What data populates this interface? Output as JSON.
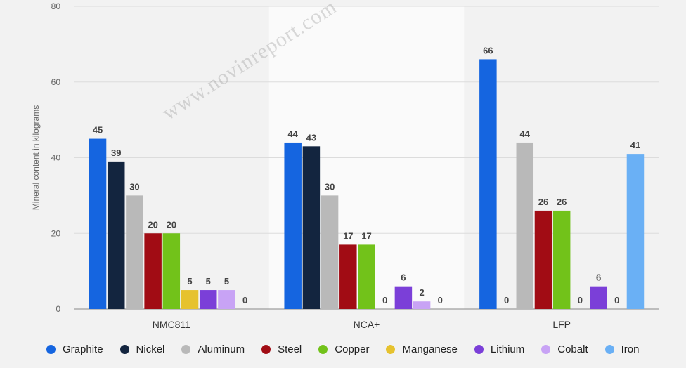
{
  "chart_data": {
    "type": "bar",
    "categories": [
      "NMC811",
      "NCA+",
      "LFP"
    ],
    "series": [
      {
        "name": "Graphite",
        "color": "#1565e0",
        "values": [
          45,
          44,
          66
        ]
      },
      {
        "name": "Nickel",
        "color": "#13253f",
        "values": [
          39,
          43,
          0
        ]
      },
      {
        "name": "Aluminum",
        "color": "#b9b9b9",
        "values": [
          30,
          30,
          44
        ]
      },
      {
        "name": "Steel",
        "color": "#a10c14",
        "values": [
          20,
          17,
          26
        ]
      },
      {
        "name": "Copper",
        "color": "#72c21a",
        "values": [
          20,
          17,
          26
        ]
      },
      {
        "name": "Manganese",
        "color": "#e6c22e",
        "values": [
          5,
          0,
          0
        ]
      },
      {
        "name": "Lithium",
        "color": "#7b3fd8",
        "values": [
          5,
          6,
          6
        ]
      },
      {
        "name": "Cobalt",
        "color": "#c8a3f5",
        "values": [
          5,
          2,
          0
        ]
      },
      {
        "name": "Iron",
        "color": "#6ab0f5",
        "values": [
          0,
          0,
          41
        ]
      }
    ],
    "ylabel": "Mineral content in kilograms",
    "ylim": [
      0,
      80
    ],
    "yticks": [
      0,
      20,
      40,
      60,
      80
    ],
    "grid": true,
    "legend_position": "bottom",
    "data_labels": true
  },
  "watermark_text": "www.novinreport.com"
}
